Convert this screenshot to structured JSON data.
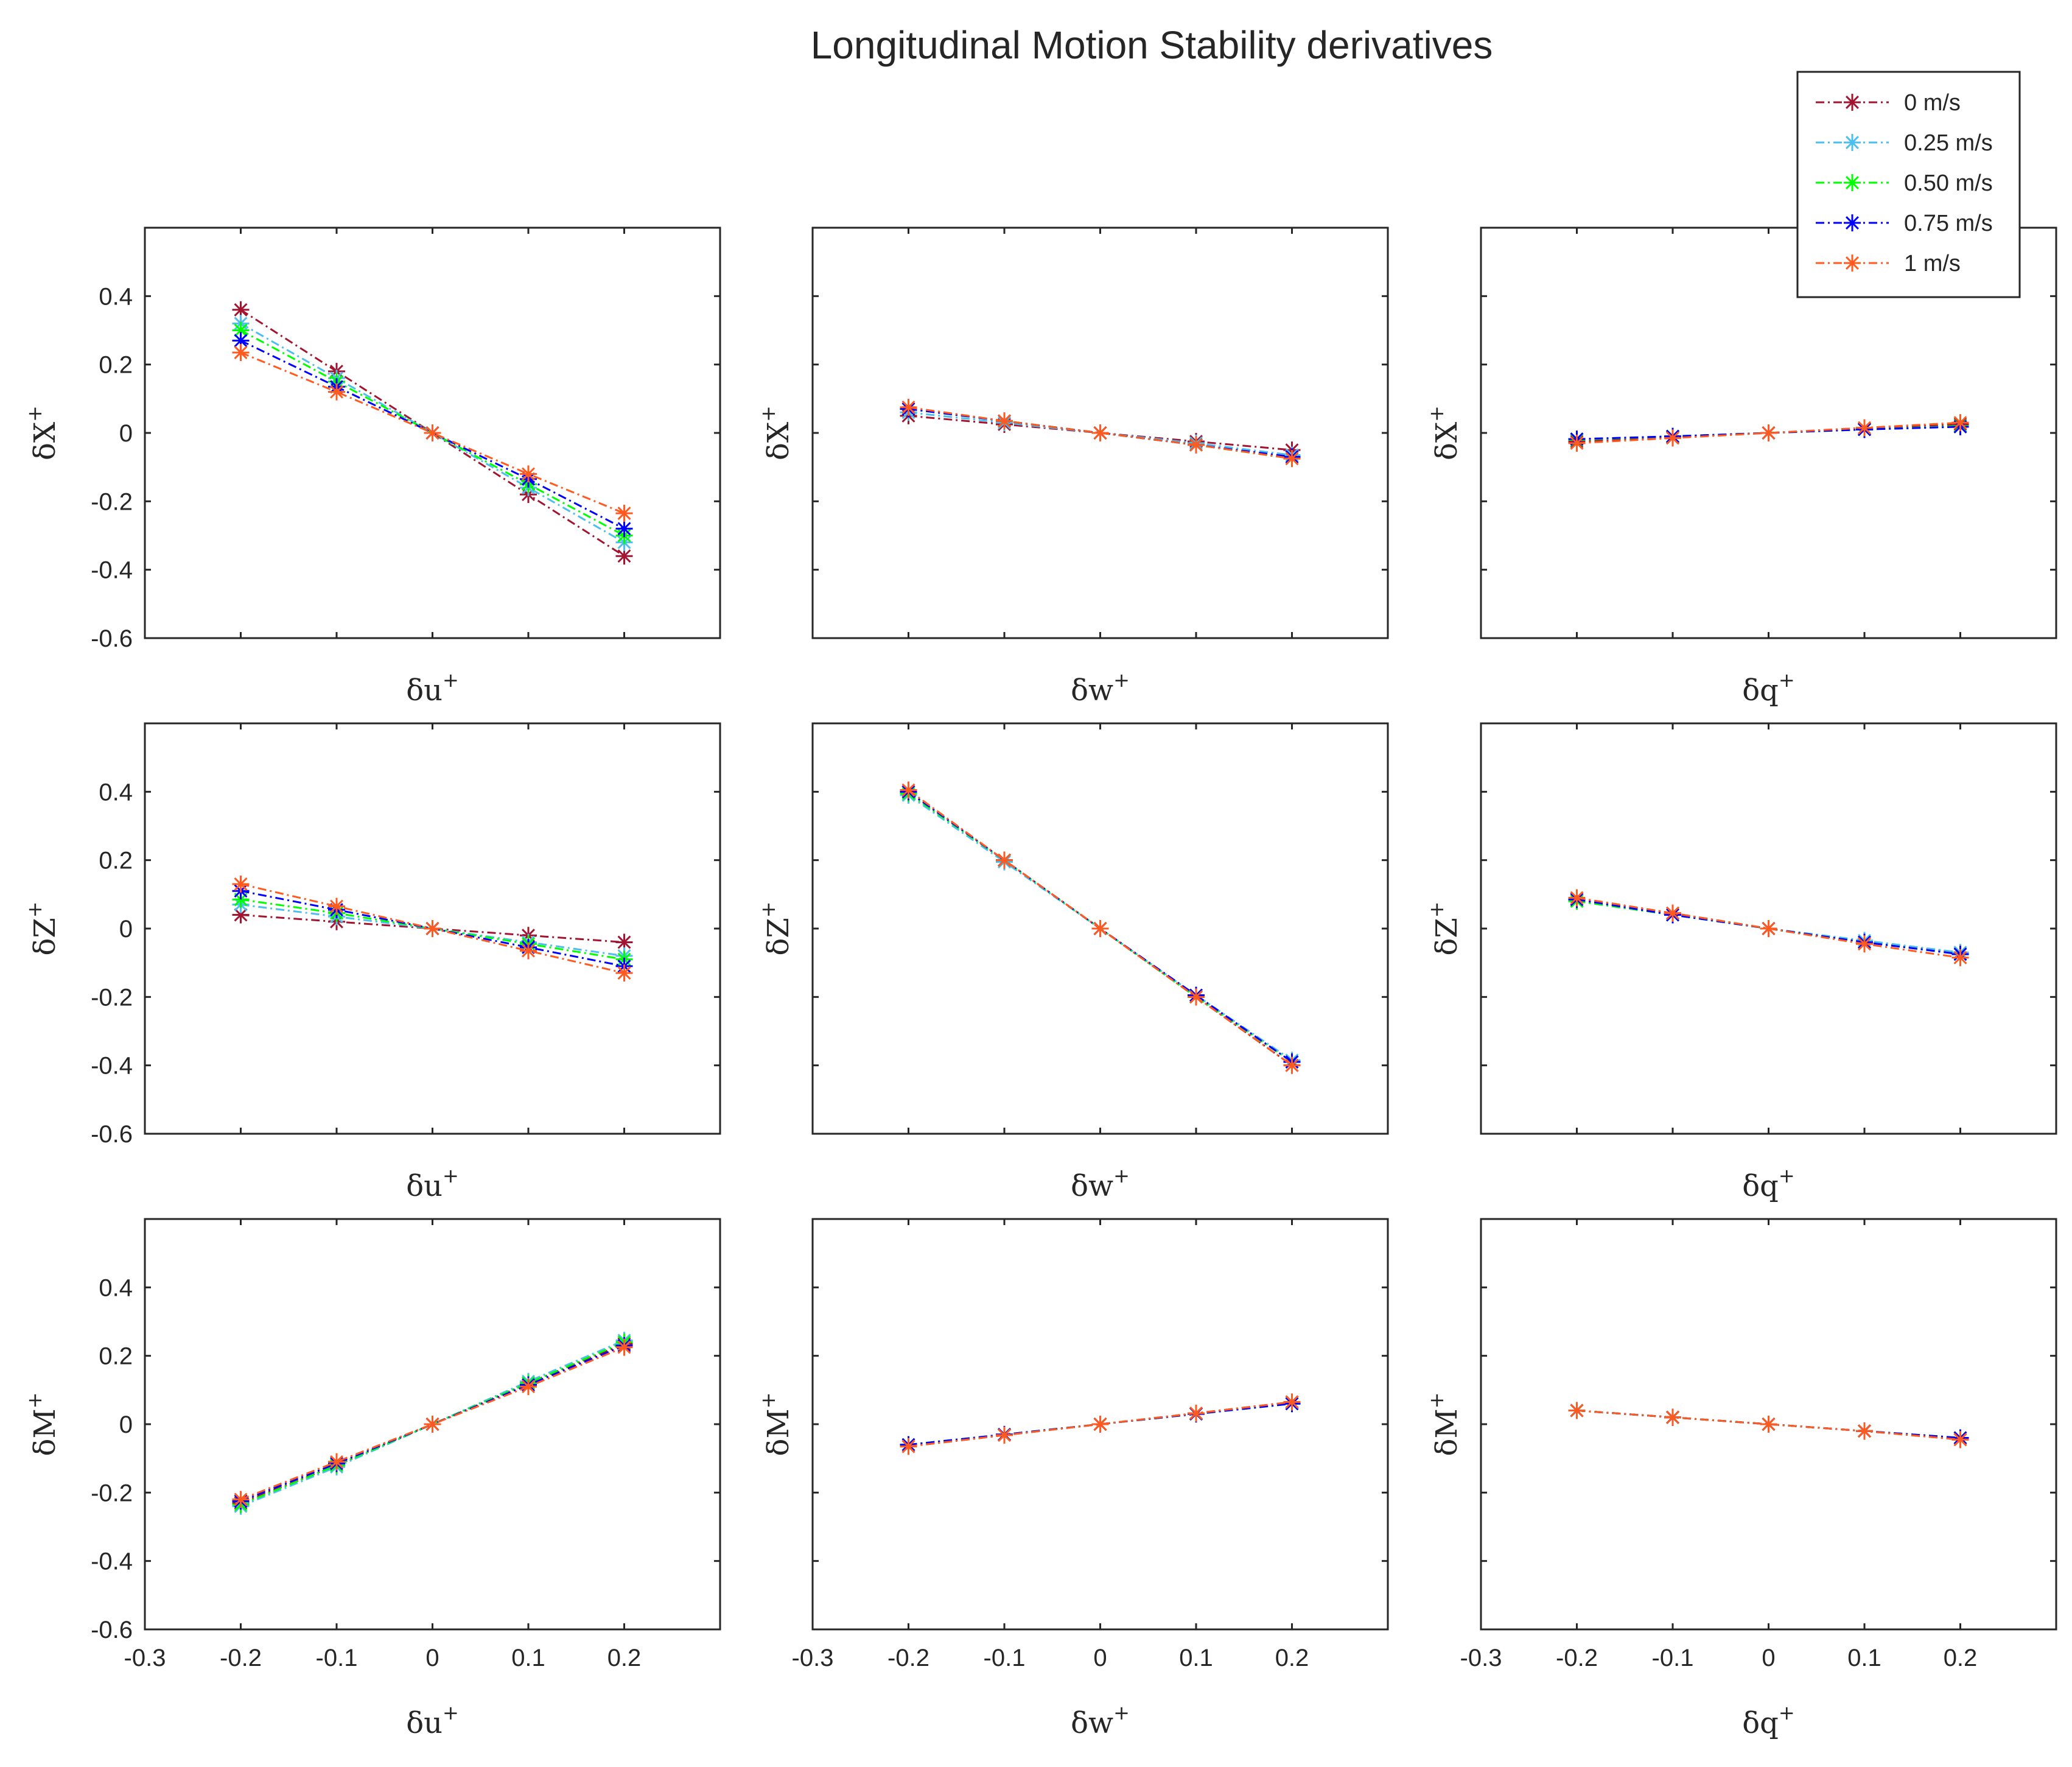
{
  "chart_data": {
    "type": "line",
    "title": "Longitudinal Motion Stability derivatives",
    "x": [
      -0.2,
      -0.1,
      0,
      0.1,
      0.2
    ],
    "xlim": [
      -0.3,
      0.3
    ],
    "ylim": [
      -0.6,
      0.6
    ],
    "xticks": [
      -0.3,
      -0.2,
      -0.1,
      0,
      0.1,
      0.2
    ],
    "xtick_labels": [
      "-0.3",
      "-0.2",
      "-0.1",
      "0",
      "0.1",
      "0.2"
    ],
    "yticks": [
      -0.6,
      -0.4,
      -0.2,
      0,
      0.2,
      0.4
    ],
    "ytick_labels": [
      "-0.6",
      "-0.4",
      "-0.2",
      "0",
      "0.2",
      "0.4"
    ],
    "legend": {
      "position": "top-right",
      "entries": [
        {
          "name": "0 m/s",
          "color": "#a2142f"
        },
        {
          "name": "0.25 m/s",
          "color": "#4dbeee"
        },
        {
          "name": "0.50 m/s",
          "color": "#00ff00"
        },
        {
          "name": "0.75 m/s",
          "color": "#0000ff"
        },
        {
          "name": "1 m/s",
          "color": "#ff5a1f"
        }
      ]
    },
    "panels": [
      {
        "ylabel": "δX",
        "xlabel": "δu",
        "series": [
          {
            "name": "0 m/s",
            "values": [
              0.36,
              0.18,
              0,
              -0.18,
              -0.36
            ]
          },
          {
            "name": "0.25 m/s",
            "values": [
              0.32,
              0.16,
              0,
              -0.16,
              -0.32
            ]
          },
          {
            "name": "0.50 m/s",
            "values": [
              0.3,
              0.15,
              0,
              -0.15,
              -0.3
            ]
          },
          {
            "name": "0.75 m/s",
            "values": [
              0.27,
              0.135,
              0,
              -0.135,
              -0.28
            ]
          },
          {
            "name": "1 m/s",
            "values": [
              0.235,
              0.12,
              0,
              -0.12,
              -0.235
            ]
          }
        ]
      },
      {
        "ylabel": "δX",
        "xlabel": "δw",
        "series": [
          {
            "name": "0 m/s",
            "values": [
              0.05,
              0.025,
              0,
              -0.025,
              -0.05
            ]
          },
          {
            "name": "0.25 m/s",
            "values": [
              0.06,
              0.03,
              0,
              -0.03,
              -0.065
            ]
          },
          {
            "name": "0.50 m/s",
            "values": [
              0.07,
              0.035,
              0,
              -0.035,
              -0.075
            ]
          },
          {
            "name": "0.75 m/s",
            "values": [
              0.07,
              0.035,
              0,
              -0.035,
              -0.07
            ]
          },
          {
            "name": "1 m/s",
            "values": [
              0.075,
              0.035,
              0,
              -0.035,
              -0.075
            ]
          }
        ]
      },
      {
        "ylabel": "δX",
        "xlabel": "δq",
        "series": [
          {
            "name": "0 m/s",
            "values": [
              -0.025,
              -0.012,
              0,
              0.012,
              0.025
            ]
          },
          {
            "name": "0.25 m/s",
            "values": [
              -0.02,
              -0.01,
              0,
              0.01,
              0.02
            ]
          },
          {
            "name": "0.50 m/s",
            "values": [
              -0.02,
              -0.01,
              0,
              0.01,
              0.02
            ]
          },
          {
            "name": "0.75 m/s",
            "values": [
              -0.018,
              -0.01,
              0,
              0.01,
              0.018
            ]
          },
          {
            "name": "1 m/s",
            "values": [
              -0.03,
              -0.015,
              0,
              0.015,
              0.03
            ]
          }
        ]
      },
      {
        "ylabel": "δZ",
        "xlabel": "δu",
        "series": [
          {
            "name": "0 m/s",
            "values": [
              0.04,
              0.02,
              0,
              -0.02,
              -0.04
            ]
          },
          {
            "name": "0.25 m/s",
            "values": [
              0.07,
              0.035,
              0,
              -0.04,
              -0.08
            ]
          },
          {
            "name": "0.50 m/s",
            "values": [
              0.085,
              0.045,
              0,
              -0.045,
              -0.09
            ]
          },
          {
            "name": "0.75 m/s",
            "values": [
              0.11,
              0.055,
              0,
              -0.055,
              -0.11
            ]
          },
          {
            "name": "1 m/s",
            "values": [
              0.13,
              0.065,
              0,
              -0.065,
              -0.13
            ]
          }
        ]
      },
      {
        "ylabel": "δZ",
        "xlabel": "δw",
        "series": [
          {
            "name": "0 m/s",
            "values": [
              0.4,
              0.2,
              0,
              -0.2,
              -0.4
            ]
          },
          {
            "name": "0.25 m/s",
            "values": [
              0.39,
              0.195,
              0,
              -0.195,
              -0.385
            ]
          },
          {
            "name": "0.50 m/s",
            "values": [
              0.395,
              0.2,
              0,
              -0.2,
              -0.39
            ]
          },
          {
            "name": "0.75 m/s",
            "values": [
              0.4,
              0.2,
              0,
              -0.195,
              -0.39
            ]
          },
          {
            "name": "1 m/s",
            "values": [
              0.405,
              0.2,
              0,
              -0.2,
              -0.4
            ]
          }
        ]
      },
      {
        "ylabel": "δZ",
        "xlabel": "δq",
        "series": [
          {
            "name": "0 m/s",
            "values": [
              0.085,
              0.045,
              0,
              -0.04,
              -0.07
            ]
          },
          {
            "name": "0.25 m/s",
            "values": [
              0.08,
              0.04,
              0,
              -0.035,
              -0.07
            ]
          },
          {
            "name": "0.50 m/s",
            "values": [
              0.08,
              0.04,
              0,
              -0.04,
              -0.075
            ]
          },
          {
            "name": "0.75 m/s",
            "values": [
              0.085,
              0.04,
              0,
              -0.04,
              -0.075
            ]
          },
          {
            "name": "1 m/s",
            "values": [
              0.09,
              0.045,
              0,
              -0.045,
              -0.085
            ]
          }
        ]
      },
      {
        "ylabel": "δM",
        "xlabel": "δu",
        "series": [
          {
            "name": "0 m/s",
            "values": [
              -0.23,
              -0.12,
              0,
              0.12,
              0.235
            ]
          },
          {
            "name": "0.25 m/s",
            "values": [
              -0.24,
              -0.125,
              0,
              0.125,
              0.245
            ]
          },
          {
            "name": "0.50 m/s",
            "values": [
              -0.235,
              -0.12,
              0,
              0.12,
              0.24
            ]
          },
          {
            "name": "0.75 m/s",
            "values": [
              -0.225,
              -0.115,
              0,
              0.115,
              0.23
            ]
          },
          {
            "name": "1 m/s",
            "values": [
              -0.22,
              -0.11,
              0,
              0.11,
              0.225
            ]
          }
        ]
      },
      {
        "ylabel": "δM",
        "xlabel": "δw",
        "series": [
          {
            "name": "0 m/s",
            "values": [
              -0.065,
              -0.032,
              0,
              0.032,
              0.065
            ]
          },
          {
            "name": "0.25 m/s",
            "values": [
              -0.06,
              -0.03,
              0,
              0.03,
              0.06
            ]
          },
          {
            "name": "0.50 m/s",
            "values": [
              -0.06,
              -0.03,
              0,
              0.03,
              0.06
            ]
          },
          {
            "name": "0.75 m/s",
            "values": [
              -0.06,
              -0.03,
              0,
              0.03,
              0.06
            ]
          },
          {
            "name": "1 m/s",
            "values": [
              -0.065,
              -0.032,
              0,
              0.032,
              0.065
            ]
          }
        ]
      },
      {
        "ylabel": "δM",
        "xlabel": "δq",
        "series": [
          {
            "name": "0 m/s",
            "values": [
              0.04,
              0.02,
              0,
              -0.02,
              -0.045
            ]
          },
          {
            "name": "0.25 m/s",
            "values": [
              0.04,
              0.02,
              0,
              -0.02,
              -0.04
            ]
          },
          {
            "name": "0.50 m/s",
            "values": [
              0.04,
              0.02,
              0,
              -0.02,
              -0.04
            ]
          },
          {
            "name": "0.75 m/s",
            "values": [
              0.04,
              0.02,
              0,
              -0.02,
              -0.04
            ]
          },
          {
            "name": "1 m/s",
            "values": [
              0.04,
              0.02,
              0,
              -0.02,
              -0.045
            ]
          }
        ]
      }
    ]
  }
}
